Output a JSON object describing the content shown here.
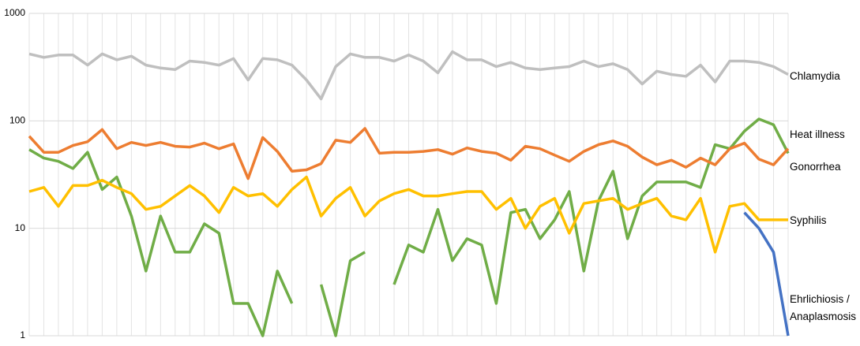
{
  "chart_data": {
    "type": "line",
    "y_scale": "log",
    "grid": true,
    "categories": [
      null,
      null,
      null,
      null,
      null,
      null,
      null,
      null,
      null,
      null,
      null,
      null,
      null,
      null,
      null,
      null,
      null,
      null,
      null,
      null,
      null,
      null,
      null,
      null,
      null,
      null,
      null,
      null,
      null,
      null,
      null,
      null,
      null,
      null,
      null,
      null,
      null,
      null,
      null,
      null,
      null,
      null,
      null,
      null,
      null,
      null,
      null,
      null,
      null,
      null,
      null,
      null,
      null
    ],
    "ylim": [
      1,
      1000
    ],
    "yticks": [
      1,
      10,
      100,
      1000
    ],
    "series": [
      {
        "name": "Chlamydia",
        "color": "#bfbfbf",
        "values": [
          420,
          390,
          410,
          410,
          330,
          420,
          370,
          400,
          330,
          310,
          300,
          360,
          350,
          330,
          380,
          240,
          380,
          370,
          330,
          240,
          160,
          320,
          420,
          390,
          390,
          360,
          410,
          360,
          280,
          440,
          370,
          370,
          320,
          350,
          310,
          300,
          310,
          320,
          360,
          320,
          340,
          300,
          220,
          290,
          270,
          260,
          330,
          230,
          360,
          360,
          350,
          320,
          270
        ]
      },
      {
        "name": "Heat illness",
        "color": "#70ad47",
        "values": [
          54,
          45,
          42,
          36,
          51,
          23,
          30,
          13,
          4,
          13,
          6,
          6,
          11,
          9,
          2,
          2,
          1,
          4,
          2,
          null,
          3,
          1,
          5,
          6,
          null,
          3,
          7,
          6,
          15,
          5,
          8,
          7,
          2,
          14,
          15,
          8,
          12,
          22,
          4,
          18,
          34,
          8,
          20,
          27,
          27,
          27,
          24,
          60,
          55,
          80,
          104,
          92,
          50
        ]
      },
      {
        "name": "Gonorrhea",
        "color": "#ed7d31",
        "values": [
          72,
          51,
          51,
          59,
          64,
          83,
          55,
          63,
          59,
          63,
          58,
          57,
          62,
          55,
          61,
          29,
          70,
          52,
          34,
          35,
          40,
          66,
          63,
          85,
          50,
          51,
          51,
          52,
          54,
          49,
          56,
          52,
          50,
          43,
          58,
          55,
          48,
          42,
          52,
          60,
          65,
          58,
          46,
          39,
          43,
          37,
          45,
          39,
          55,
          62,
          44,
          39,
          55
        ]
      },
      {
        "name": "Syphilis",
        "color": "#ffc000",
        "values": [
          22,
          24,
          16,
          25,
          25,
          28,
          24,
          21,
          15,
          16,
          20,
          25,
          20,
          14,
          24,
          20,
          21,
          16,
          23,
          30,
          13,
          19,
          24,
          13,
          18,
          21,
          23,
          20,
          20,
          21,
          22,
          22,
          15,
          19,
          10,
          16,
          19,
          9,
          17,
          18,
          19,
          15,
          17,
          19,
          13,
          12,
          19,
          6,
          16,
          17,
          12,
          12,
          12
        ]
      },
      {
        "name": "Ehrlichiosis / Anaplasmosis",
        "color": "#4472c4",
        "values": [
          null,
          null,
          null,
          null,
          null,
          null,
          null,
          null,
          null,
          null,
          null,
          null,
          null,
          null,
          null,
          null,
          null,
          null,
          null,
          null,
          null,
          null,
          null,
          null,
          null,
          null,
          null,
          null,
          null,
          null,
          null,
          null,
          null,
          null,
          null,
          null,
          null,
          null,
          null,
          null,
          null,
          null,
          null,
          null,
          null,
          null,
          null,
          null,
          null,
          14,
          10,
          6,
          1
        ]
      }
    ]
  }
}
